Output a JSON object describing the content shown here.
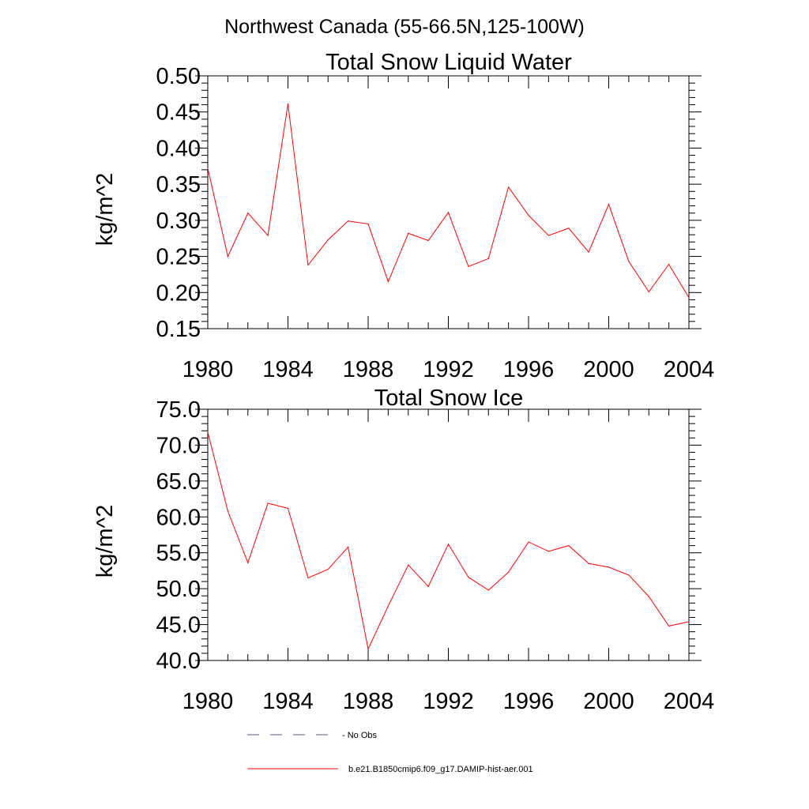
{
  "page": {
    "title": "Northwest Canada (55-66.5N,125-100W)"
  },
  "legend": {
    "items": [
      {
        "label": "- No Obs",
        "color": "#5a5a8a",
        "style": "dashed"
      },
      {
        "label": "b.e21.B1850cmip6.f09_g17.DAMIP-hist-aer.001",
        "color": "#ff0000",
        "style": "solid"
      }
    ]
  },
  "chart_data": [
    {
      "type": "line",
      "title": "Total Snow Liquid Water",
      "ylabel": "kg/m^2",
      "xlabel": "",
      "xlim": [
        1980,
        2004
      ],
      "ylim": [
        0.15,
        0.5
      ],
      "xticks": [
        1980,
        1984,
        1988,
        1992,
        1996,
        2000,
        2004
      ],
      "yticks": [
        "0.15",
        "0.20",
        "0.25",
        "0.30",
        "0.35",
        "0.40",
        "0.45",
        "0.50"
      ],
      "series": [
        {
          "name": "b.e21.B1850cmip6.f09_g17.DAMIP-hist-aer.001",
          "color": "#ff0000",
          "x": [
            1980,
            1981,
            1982,
            1983,
            1984,
            1985,
            1986,
            1987,
            1988,
            1989,
            1990,
            1991,
            1992,
            1993,
            1994,
            1995,
            1996,
            1997,
            1998,
            1999,
            2000,
            2001,
            2002,
            2003,
            2004
          ],
          "y": [
            0.372,
            0.25,
            0.31,
            0.279,
            0.461,
            0.238,
            0.273,
            0.299,
            0.295,
            0.215,
            0.282,
            0.272,
            0.311,
            0.236,
            0.247,
            0.346,
            0.307,
            0.279,
            0.289,
            0.256,
            0.322,
            0.243,
            0.201,
            0.239,
            0.193
          ]
        }
      ]
    },
    {
      "type": "line",
      "title": "Total Snow Ice",
      "ylabel": "kg/m^2",
      "xlabel": "",
      "xlim": [
        1980,
        2004
      ],
      "ylim": [
        40.0,
        75.0
      ],
      "xticks": [
        1980,
        1984,
        1988,
        1992,
        1996,
        2000,
        2004
      ],
      "yticks": [
        "40.0",
        "45.0",
        "50.0",
        "55.0",
        "60.0",
        "65.0",
        "70.0",
        "75.0"
      ],
      "series": [
        {
          "name": "b.e21.B1850cmip6.f09_g17.DAMIP-hist-aer.001",
          "color": "#ff0000",
          "x": [
            1980,
            1981,
            1982,
            1983,
            1984,
            1985,
            1986,
            1987,
            1988,
            1989,
            1990,
            1991,
            1992,
            1993,
            1994,
            1995,
            1996,
            1997,
            1998,
            1999,
            2000,
            2001,
            2002,
            2003,
            2004
          ],
          "y": [
            71.8,
            60.8,
            53.6,
            61.9,
            61.2,
            51.5,
            52.7,
            55.8,
            41.6,
            47.6,
            53.3,
            50.3,
            56.2,
            51.6,
            49.8,
            52.3,
            56.5,
            55.2,
            56.0,
            53.5,
            53.0,
            51.9,
            48.9,
            44.8,
            45.4
          ]
        }
      ]
    }
  ]
}
